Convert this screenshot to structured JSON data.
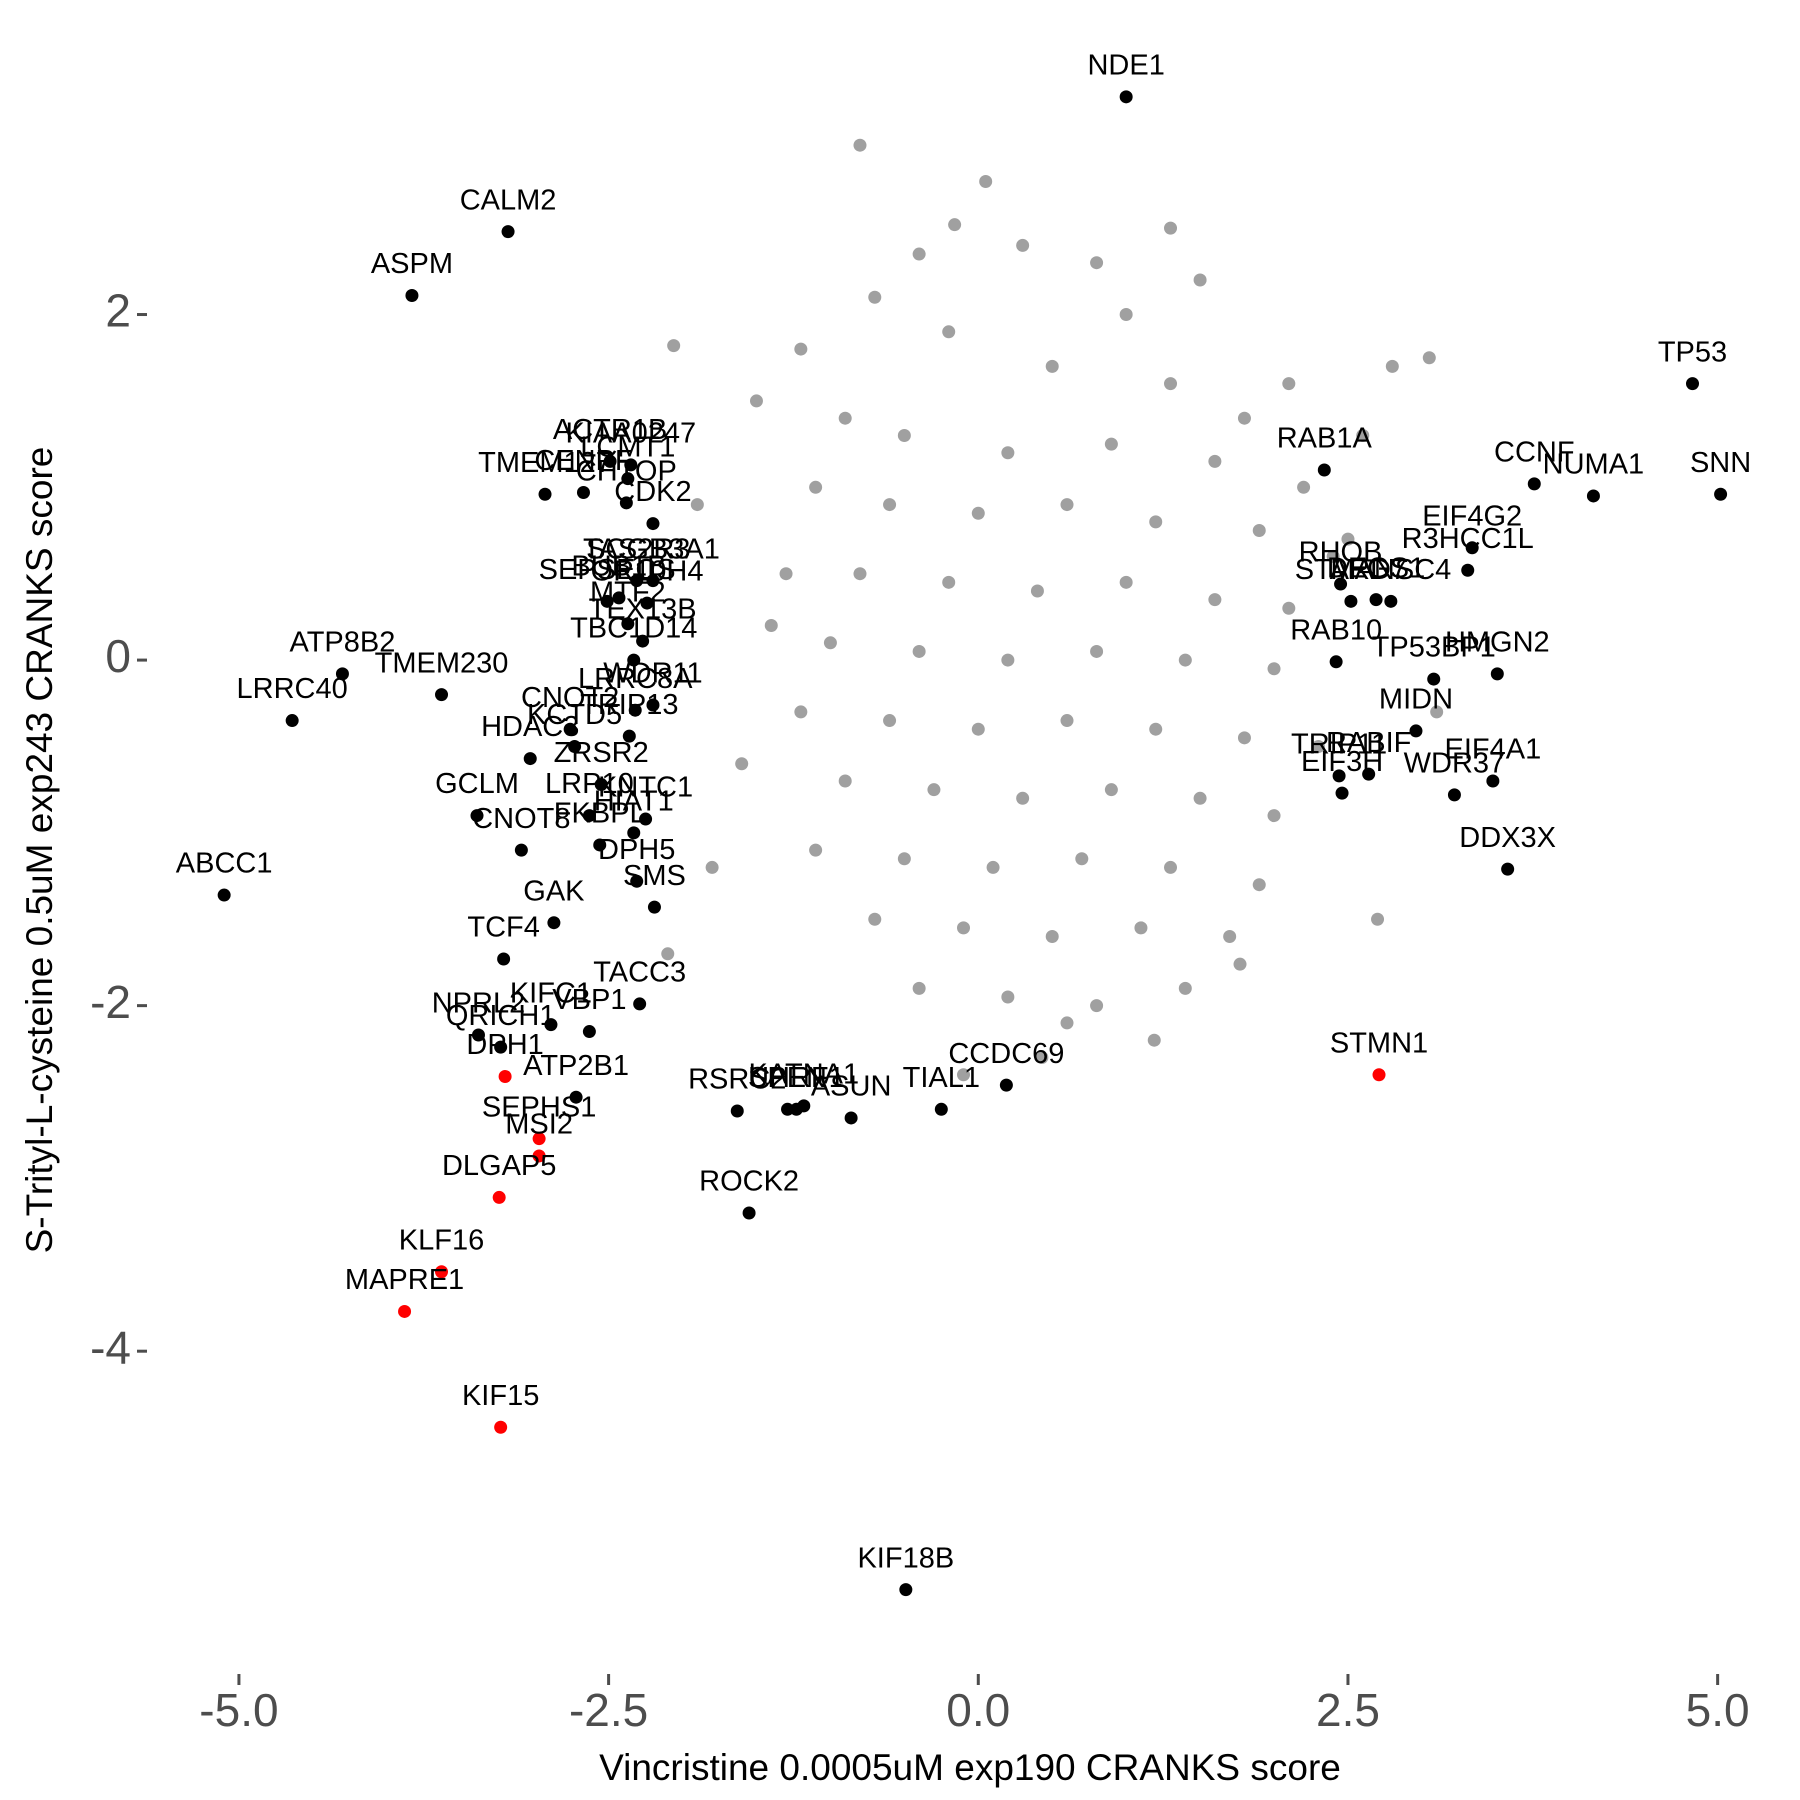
{
  "chart_data": {
    "type": "scatter",
    "x_label": "Vincristine 0.0005uM exp190 CRANKS score",
    "y_label": "S-Trityl-L-cysteine 0.5uM exp243 CRANKS score",
    "xlim": [
      -5.5,
      5.3
    ],
    "ylim": [
      -5.55,
      3.45
    ],
    "xticks": [
      {
        "value": -5,
        "label": "-5.0"
      },
      {
        "value": -2.5,
        "label": "-2.5"
      },
      {
        "value": 0,
        "label": "0.0"
      },
      {
        "value": 2.5,
        "label": "2.5"
      },
      {
        "value": 5,
        "label": "5.0"
      }
    ],
    "yticks": [
      2,
      0,
      -2,
      -4
    ],
    "grid": false,
    "series": [
      {
        "color": "#a0a0a0",
        "x": [
          -0.8,
          0.05,
          -0.16,
          -0.4,
          0.3,
          0.8,
          1.5,
          -0.7,
          1.0,
          -1.2,
          2.1,
          3.05,
          -2.06,
          -1.5,
          2.6,
          -0.2,
          0.5,
          1.3,
          -0.9,
          1.8,
          -0.5,
          0.2,
          0.9,
          1.6,
          2.2,
          -1.1,
          -0.6,
          0.0,
          0.6,
          1.2,
          1.9,
          2.4,
          -1.3,
          -0.8,
          -0.2,
          0.4,
          1.0,
          1.6,
          2.1,
          -1.0,
          -0.4,
          0.2,
          0.8,
          1.4,
          2.0,
          -1.2,
          -0.6,
          0.0,
          0.6,
          1.2,
          1.8,
          2.3,
          -0.9,
          -0.3,
          0.3,
          0.9,
          1.5,
          2.0,
          -1.1,
          -0.5,
          0.1,
          0.7,
          1.3,
          1.9,
          -0.7,
          -0.1,
          0.5,
          1.1,
          1.7,
          -0.4,
          0.2,
          0.8,
          1.4,
          0.43,
          1.19,
          1.77,
          -2.1,
          -1.8,
          -1.6,
          2.8,
          3.1,
          -1.9,
          2.7,
          -0.1,
          0.6,
          1.3,
          -1.4,
          2.5
        ],
        "y": [
          2.98,
          2.77,
          2.52,
          2.35,
          2.4,
          2.3,
          2.2,
          2.1,
          2.0,
          1.8,
          1.6,
          1.75,
          1.82,
          1.5,
          1.3,
          1.9,
          1.7,
          1.6,
          1.4,
          1.4,
          1.3,
          1.2,
          1.25,
          1.15,
          1.0,
          1.0,
          0.9,
          0.85,
          0.9,
          0.8,
          0.75,
          0.6,
          0.5,
          0.5,
          0.45,
          0.4,
          0.45,
          0.35,
          0.3,
          0.1,
          0.05,
          0.0,
          0.05,
          0.0,
          -0.05,
          -0.3,
          -0.35,
          -0.4,
          -0.35,
          -0.4,
          -0.45,
          -0.5,
          -0.7,
          -0.75,
          -0.8,
          -0.75,
          -0.8,
          -0.9,
          -1.1,
          -1.15,
          -1.2,
          -1.15,
          -1.2,
          -1.3,
          -1.5,
          -1.55,
          -1.6,
          -1.55,
          -1.6,
          -1.9,
          -1.95,
          -2.0,
          -1.9,
          -2.3,
          -2.2,
          -1.76,
          -1.7,
          -1.2,
          -0.6,
          1.7,
          -0.3,
          0.9,
          -1.5,
          -2.4,
          -2.1,
          2.5,
          0.2,
          0.7
        ]
      },
      {
        "color": "#000000",
        "labels": [
          "NDE1",
          "CALM2",
          "ASPM",
          "TP53",
          "SNN",
          "NUMA1",
          "CCNF",
          "RAB1A",
          "EIF4G2",
          "R3HCC1L",
          "RHOB",
          "DEGS1",
          "MANSC4",
          "STARD7",
          "RAB10",
          "HMGN2",
          "TP53BP1",
          "MIDN",
          "RABIF",
          "TRIP11",
          "EIF3H",
          "EIF4A1",
          "WDR37",
          "DDX3X",
          "CCDC69",
          "TIAL1",
          "ASUN",
          "UHRF1",
          "SPEN",
          "KATNA1",
          "RSRC2",
          "ROCK2",
          "KIF18B",
          "ATP2B1",
          "VBP1",
          "TACC3",
          "KIFC1",
          "NPRL2",
          "QRICH1",
          "TCF4",
          "GAK",
          "SMS",
          "DPH5",
          "FKBPL",
          "CNOT8",
          "GCLM",
          "LRP10",
          "HIAT1",
          "KNTC1",
          "ZRSR2",
          "ABCC1",
          "LRRC40",
          "ATP8B2",
          "TMEM230",
          "KCTD5",
          "HDAC3",
          "CNOT2",
          "TRIP13",
          "LRRC8A",
          "WDR11",
          "MTF2",
          "TBC1D14",
          "SEPSECS",
          "BUB1B",
          "TAS2R3",
          "SCGB3A1",
          "OR10H4",
          "TEX13B",
          "CDK2",
          "CHTOP",
          "TMEM127",
          "CENPF",
          "ACTR1B",
          "LCMT1",
          "KIAA0247"
        ],
        "x": [
          1.0,
          -3.18,
          -3.83,
          4.83,
          5.02,
          4.16,
          3.76,
          2.34,
          3.34,
          3.31,
          2.45,
          2.69,
          2.79,
          2.52,
          2.42,
          3.51,
          3.08,
          2.96,
          2.64,
          2.44,
          2.46,
          3.48,
          3.22,
          3.58,
          0.19,
          -0.25,
          -0.86,
          -1.23,
          -1.29,
          -1.18,
          -1.63,
          -1.55,
          -0.49,
          -2.72,
          -2.63,
          -2.29,
          -2.89,
          -3.38,
          -3.23,
          -3.21,
          -2.87,
          -2.19,
          -2.31,
          -2.56,
          -3.09,
          -3.39,
          -2.63,
          -2.33,
          -2.25,
          -2.55,
          -5.1,
          -4.64,
          -4.3,
          -3.63,
          -2.73,
          -3.03,
          -2.76,
          -2.36,
          -2.32,
          -2.2,
          -2.37,
          -2.33,
          -2.51,
          -2.43,
          -2.31,
          -2.2,
          -2.24,
          -2.27,
          -2.2,
          -2.38,
          -2.93,
          -2.67,
          -2.49,
          -2.37,
          -2.35
        ],
        "y": [
          3.26,
          2.48,
          2.11,
          1.6,
          0.96,
          0.95,
          1.02,
          1.1,
          0.65,
          0.52,
          0.44,
          0.35,
          0.34,
          0.34,
          -0.01,
          -0.08,
          -0.11,
          -0.41,
          -0.66,
          -0.67,
          -0.77,
          -0.7,
          -0.78,
          -1.21,
          -2.46,
          -2.6,
          -2.65,
          -2.6,
          -2.6,
          -2.58,
          -2.61,
          -3.2,
          -5.38,
          -2.53,
          -2.15,
          -1.99,
          -2.11,
          -2.17,
          -2.24,
          -1.73,
          -1.52,
          -1.43,
          -1.28,
          -1.07,
          -1.1,
          -0.9,
          -0.9,
          -1.0,
          -0.92,
          -0.72,
          -1.36,
          -0.35,
          -0.08,
          -0.2,
          -0.5,
          -0.57,
          -0.4,
          -0.44,
          -0.29,
          -0.26,
          0.21,
          0.0,
          0.34,
          0.36,
          0.46,
          0.46,
          0.33,
          0.11,
          0.79,
          0.91,
          0.96,
          0.97,
          1.15,
          1.05,
          1.13
        ]
      },
      {
        "color": "#ff0000",
        "labels": [
          "STMN1",
          "DPH1",
          "SEPHS1",
          "MSI2",
          "DLGAP5",
          "KLF16",
          "MAPRE1",
          "KIF15"
        ],
        "x": [
          2.71,
          -3.2,
          -2.97,
          -2.97,
          -3.24,
          -3.63,
          -3.88,
          -3.23
        ],
        "y": [
          -2.4,
          -2.41,
          -2.77,
          -2.87,
          -3.11,
          -3.54,
          -3.77,
          -4.44
        ]
      }
    ]
  }
}
